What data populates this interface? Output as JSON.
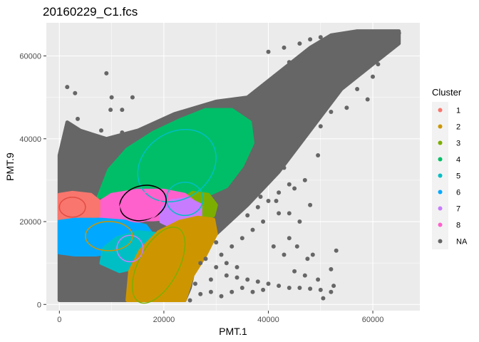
{
  "chart_data": {
    "type": "scatter",
    "title": "20160229_C1.fcs",
    "xlabel": "PMT.1",
    "ylabel": "PMT.9",
    "xlim": [
      -2500,
      69000
    ],
    "ylim": [
      -1500,
      68000
    ],
    "x_ticks": [
      0,
      20000,
      40000,
      60000
    ],
    "y_ticks": [
      0,
      20000,
      40000,
      60000
    ],
    "x_tick_labels": [
      "0",
      "20000",
      "40000",
      "60000"
    ],
    "y_tick_labels": [
      "0",
      "20000",
      "40000",
      "60000"
    ],
    "grid": true,
    "panel_background": "#ebebeb",
    "legend": {
      "title": "Cluster",
      "position": "right",
      "entries": [
        {
          "label": "1",
          "color": "#F8766D"
        },
        {
          "label": "2",
          "color": "#CD9600"
        },
        {
          "label": "3",
          "color": "#7CAE00"
        },
        {
          "label": "4",
          "color": "#00BE67"
        },
        {
          "label": "5",
          "color": "#00BFC4"
        },
        {
          "label": "6",
          "color": "#00A9FF"
        },
        {
          "label": "7",
          "color": "#C77CFF"
        },
        {
          "label": "8",
          "color": "#FF61CC"
        },
        {
          "label": "NA",
          "color": "#666666"
        }
      ]
    },
    "regions": [
      {
        "cluster": "NA",
        "color": "#666666",
        "points": [
          [
            0,
            1000
          ],
          [
            0,
            17000
          ],
          [
            0,
            36000
          ],
          [
            1500,
            44000
          ],
          [
            4000,
            42000
          ],
          [
            9000,
            40000
          ],
          [
            15000,
            42000
          ],
          [
            22000,
            46000
          ],
          [
            30000,
            49000
          ],
          [
            36000,
            50000
          ],
          [
            42000,
            56000
          ],
          [
            48000,
            62000
          ],
          [
            52000,
            65000
          ],
          [
            57000,
            66000
          ],
          [
            65000,
            66000
          ],
          [
            65000,
            63000
          ],
          [
            60000,
            58000
          ],
          [
            54000,
            52000
          ],
          [
            48000,
            42000
          ],
          [
            42000,
            32000
          ],
          [
            36000,
            24000
          ],
          [
            30000,
            17000
          ],
          [
            26000,
            10000
          ],
          [
            25000,
            4000
          ],
          [
            24000,
            1000
          ]
        ]
      },
      {
        "cluster": "4",
        "color": "#00BE67",
        "points": [
          [
            7500,
            26000
          ],
          [
            9500,
            32500
          ],
          [
            13000,
            37500
          ],
          [
            18000,
            41500
          ],
          [
            23000,
            44500
          ],
          [
            28000,
            47000
          ],
          [
            33000,
            47000
          ],
          [
            36500,
            44000
          ],
          [
            37000,
            39000
          ],
          [
            35000,
            33500
          ],
          [
            32000,
            28500
          ],
          [
            28500,
            26500
          ],
          [
            20000,
            26500
          ],
          [
            12000,
            26000
          ]
        ]
      },
      {
        "cluster": "3",
        "color": "#7CAE00",
        "points": [
          [
            22000,
            23000
          ],
          [
            23500,
            25000
          ],
          [
            25500,
            27000
          ],
          [
            28500,
            26500
          ],
          [
            30000,
            24000
          ],
          [
            29500,
            21500
          ],
          [
            26500,
            20000
          ],
          [
            23500,
            20500
          ]
        ]
      },
      {
        "cluster": "8",
        "color": "#FF61CC",
        "points": [
          [
            7000,
            21500
          ],
          [
            7500,
            24500
          ],
          [
            10000,
            26500
          ],
          [
            15000,
            27500
          ],
          [
            20000,
            27500
          ],
          [
            24000,
            26500
          ],
          [
            26000,
            24500
          ],
          [
            25500,
            22000
          ],
          [
            23000,
            21000
          ],
          [
            18000,
            20500
          ],
          [
            11000,
            20500
          ]
        ]
      },
      {
        "cluster": "7",
        "color": "#C77CFF",
        "points": [
          [
            19500,
            20000
          ],
          [
            19500,
            23000
          ],
          [
            21500,
            25000
          ],
          [
            24500,
            25500
          ],
          [
            27000,
            24000
          ],
          [
            27000,
            21500
          ],
          [
            25000,
            19500
          ],
          [
            22000,
            18500
          ]
        ]
      },
      {
        "cluster": "1",
        "color": "#F8766D",
        "points": [
          [
            0,
            20500
          ],
          [
            0,
            26500
          ],
          [
            2500,
            27000
          ],
          [
            6000,
            26500
          ],
          [
            7500,
            25000
          ],
          [
            7500,
            21500
          ],
          [
            5500,
            20500
          ],
          [
            2500,
            20000
          ]
        ]
      },
      {
        "cluster": "6",
        "color": "#00A9FF",
        "points": [
          [
            0,
            12500
          ],
          [
            0,
            20000
          ],
          [
            3000,
            20500
          ],
          [
            8000,
            20500
          ],
          [
            13000,
            20000
          ],
          [
            16500,
            19000
          ],
          [
            18000,
            16500
          ],
          [
            16500,
            14500
          ],
          [
            12000,
            13000
          ],
          [
            7000,
            12000
          ],
          [
            3000,
            12000
          ]
        ]
      },
      {
        "cluster": "5",
        "color": "#00BFC4",
        "points": [
          [
            8000,
            10000
          ],
          [
            8500,
            13500
          ],
          [
            11000,
            16000
          ],
          [
            15000,
            17500
          ],
          [
            19000,
            17000
          ],
          [
            20000,
            14500
          ],
          [
            18000,
            11500
          ],
          [
            15000,
            9000
          ],
          [
            11500,
            8000
          ]
        ]
      },
      {
        "cluster": "2",
        "color": "#CD9600",
        "points": [
          [
            13000,
            1000
          ],
          [
            13500,
            8000
          ],
          [
            15500,
            13000
          ],
          [
            19000,
            17500
          ],
          [
            23000,
            20000
          ],
          [
            26500,
            21000
          ],
          [
            29500,
            20500
          ],
          [
            30000,
            17000
          ],
          [
            28000,
            12000
          ],
          [
            25500,
            7000
          ],
          [
            24500,
            3000
          ],
          [
            24000,
            1000
          ]
        ]
      }
    ],
    "scatter": [
      [
        1500,
        52500
      ],
      [
        3000,
        51000
      ],
      [
        9000,
        55800
      ],
      [
        10000,
        50000
      ],
      [
        9800,
        47000
      ],
      [
        3500,
        44800
      ],
      [
        12000,
        47000
      ],
      [
        14000,
        50000
      ],
      [
        5500,
        40000
      ],
      [
        8000,
        42000
      ],
      [
        2000,
        43000
      ],
      [
        4000,
        38000
      ],
      [
        1500,
        40000
      ],
      [
        12000,
        41500
      ],
      [
        3000,
        36000
      ],
      [
        6000,
        35500
      ],
      [
        40000,
        61000
      ],
      [
        43000,
        62000
      ],
      [
        46000,
        63000
      ],
      [
        48000,
        64000
      ],
      [
        50000,
        64500
      ],
      [
        53000,
        65000
      ],
      [
        56000,
        65500
      ],
      [
        59000,
        65500
      ],
      [
        62000,
        65500
      ],
      [
        64000,
        65000
      ],
      [
        65000,
        65500
      ],
      [
        44000,
        58500
      ],
      [
        47000,
        60000
      ],
      [
        50000,
        61000
      ],
      [
        53000,
        58000
      ],
      [
        55000,
        55000
      ],
      [
        57000,
        52000
      ],
      [
        59000,
        49500
      ],
      [
        55000,
        47500
      ],
      [
        52000,
        46500
      ],
      [
        50000,
        43000
      ],
      [
        46000,
        40000
      ],
      [
        41000,
        37000
      ],
      [
        39000,
        35000
      ],
      [
        43000,
        33000
      ],
      [
        44000,
        29000
      ],
      [
        42000,
        27000
      ],
      [
        40000,
        25000
      ],
      [
        38000,
        23500
      ],
      [
        36000,
        21500
      ],
      [
        49500,
        36000
      ],
      [
        47000,
        30000
      ],
      [
        45000,
        28000
      ],
      [
        48000,
        24000
      ],
      [
        42000,
        22000
      ],
      [
        39000,
        20000
      ],
      [
        37000,
        18000
      ],
      [
        35000,
        16000
      ],
      [
        33000,
        14000
      ],
      [
        31000,
        12000
      ],
      [
        28000,
        11000
      ],
      [
        27000,
        10000
      ],
      [
        30000,
        9000
      ],
      [
        32000,
        7000
      ],
      [
        34000,
        6500
      ],
      [
        36000,
        6000
      ],
      [
        38000,
        5500
      ],
      [
        40000,
        5000
      ],
      [
        42000,
        4500
      ],
      [
        44000,
        4000
      ],
      [
        46000,
        4000
      ],
      [
        48000,
        3800
      ],
      [
        50000,
        3500
      ],
      [
        52000,
        3000
      ],
      [
        45000,
        8000
      ],
      [
        47000,
        7000
      ],
      [
        43000,
        12000
      ],
      [
        41000,
        14000
      ],
      [
        44000,
        16000
      ],
      [
        48500,
        12000
      ],
      [
        50500,
        1500
      ],
      [
        52500,
        4500
      ],
      [
        53000,
        13000
      ],
      [
        52000,
        8500
      ],
      [
        49500,
        6000
      ],
      [
        47500,
        11000
      ],
      [
        45500,
        14000
      ],
      [
        46000,
        20000
      ],
      [
        44000,
        22000
      ],
      [
        41500,
        25000
      ],
      [
        38500,
        26000
      ],
      [
        37000,
        28000
      ],
      [
        25000,
        1000
      ],
      [
        27000,
        2500
      ],
      [
        29000,
        3000
      ],
      [
        31000,
        2000
      ],
      [
        33000,
        3000
      ],
      [
        35000,
        4000
      ],
      [
        37000,
        3000
      ],
      [
        39000,
        3500
      ],
      [
        29000,
        6000
      ],
      [
        26000,
        5000
      ],
      [
        30000,
        15000
      ],
      [
        32000,
        10000
      ],
      [
        34000,
        9000
      ],
      [
        60000,
        55000
      ],
      [
        61000,
        58000
      ],
      [
        58000,
        62000
      ],
      [
        55000,
        62000
      ],
      [
        52000,
        60000
      ],
      [
        48000,
        56000
      ],
      [
        46000,
        53000
      ],
      [
        44000,
        50000
      ],
      [
        42000,
        48000
      ],
      [
        40000,
        46000
      ],
      [
        38000,
        44000
      ]
    ],
    "ellipses": [
      {
        "cluster": "1",
        "color": "#F8766D",
        "stroke": "#E14D44",
        "cx": 2500,
        "cy": 23500,
        "rx": 2500,
        "ry": 1500,
        "angle": 0
      },
      {
        "cluster": "2",
        "color": "#CD9600",
        "stroke": "#7CAE00",
        "cx": 19000,
        "cy": 9500,
        "rx": 8000,
        "ry": 3000,
        "angle": 62
      },
      {
        "cluster": "3",
        "color": "#7CAE00",
        "stroke": "#00BFC4",
        "cx": 24000,
        "cy": 25500,
        "rx": 3500,
        "ry": 2500,
        "angle": 0
      },
      {
        "cluster": "4",
        "color": "#00BE67",
        "stroke": "#00BFC4",
        "cx": 22500,
        "cy": 33500,
        "rx": 8000,
        "ry": 5000,
        "angle": 35
      },
      {
        "cluster": "5",
        "color": "#00BFC4",
        "stroke": "#C77CFF",
        "cx": 13500,
        "cy": 13500,
        "rx": 2500,
        "ry": 2000,
        "angle": 0
      },
      {
        "cluster": "6",
        "color": "#00A9FF",
        "stroke": "#CD9600",
        "cx": 9500,
        "cy": 16500,
        "rx": 4500,
        "ry": 2200,
        "angle": 0
      },
      {
        "cluster": "7",
        "color": "#C77CFF",
        "stroke": "#000000",
        "cx": 16000,
        "cy": 24500,
        "rx": 4500,
        "ry": 2600,
        "angle": 15
      },
      {
        "cluster": "8",
        "color": "#FF61CC",
        "stroke": "#FF61CC",
        "cx": 15500,
        "cy": 23500,
        "rx": 4000,
        "ry": 2200,
        "angle": 10
      }
    ]
  }
}
